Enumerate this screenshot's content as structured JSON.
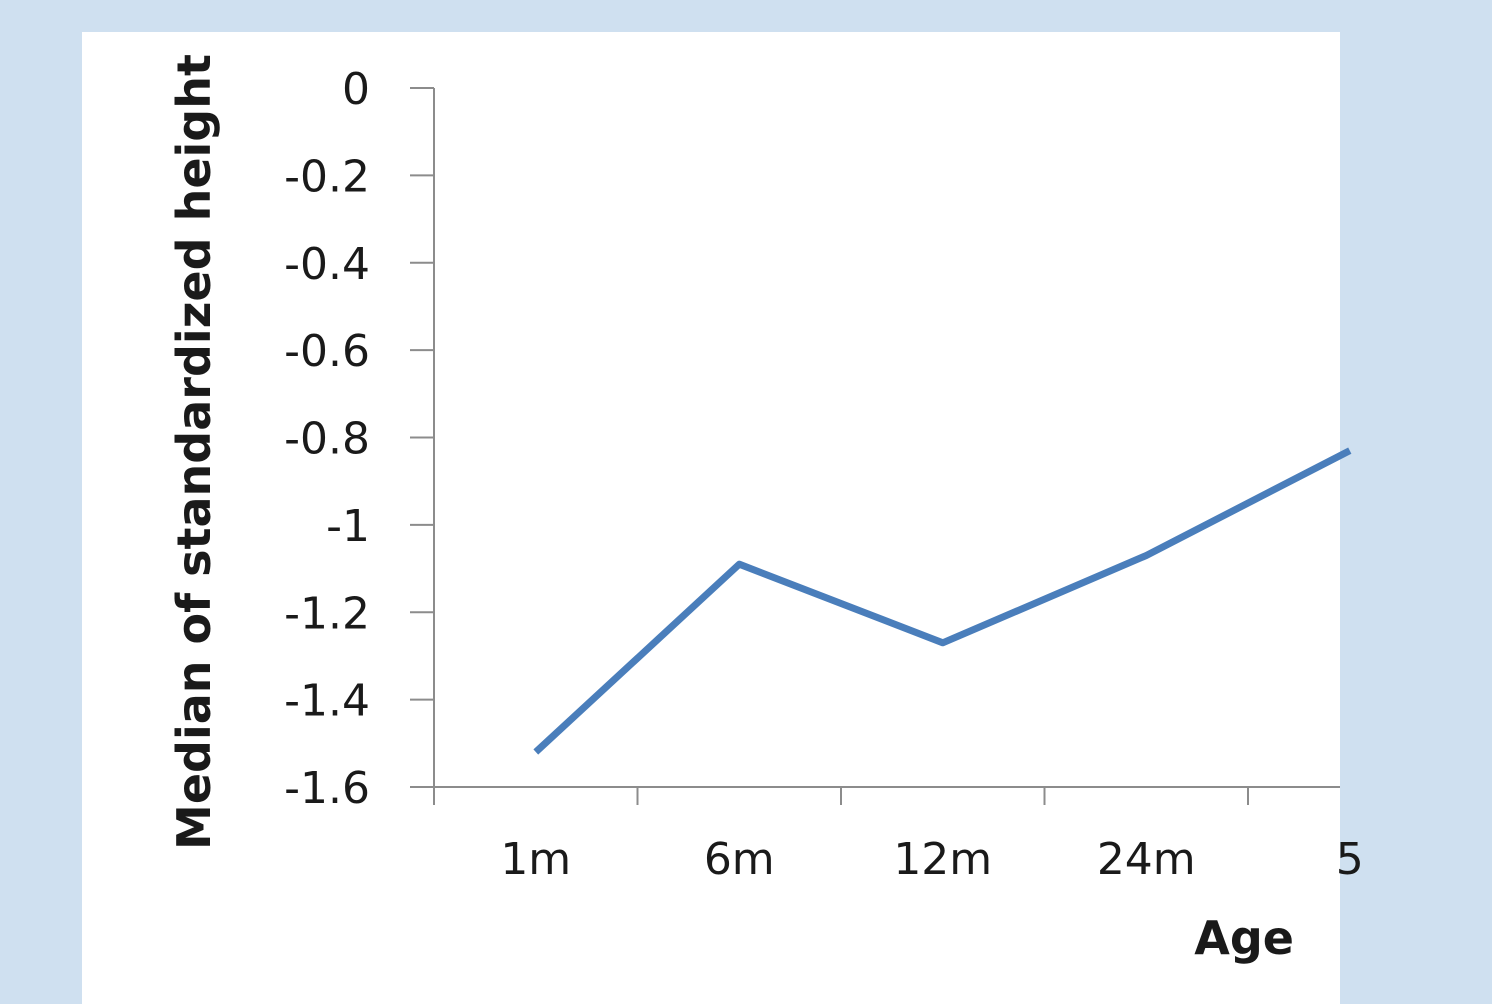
{
  "chart_data": {
    "type": "line",
    "categories": [
      "1m",
      "6m",
      "12m",
      "24m",
      "5"
    ],
    "series": [
      {
        "values": [
          -1.52,
          -1.09,
          -1.27,
          -1.07,
          -0.83
        ]
      }
    ],
    "xlabel": "Age",
    "ylabel": "Median of standardized height",
    "ylim": [
      -1.6,
      0
    ],
    "yticks": [
      "0",
      "-0.2",
      "-0.4",
      "-0.6",
      "-0.8",
      "-1",
      "-1.2",
      "-1.4",
      "-1.6"
    ],
    "grid": false,
    "colors": {
      "series": "#4a7ebb",
      "axis": "#8c8c8c",
      "background": "#cfe0f0",
      "panel": "#ffffff"
    }
  }
}
